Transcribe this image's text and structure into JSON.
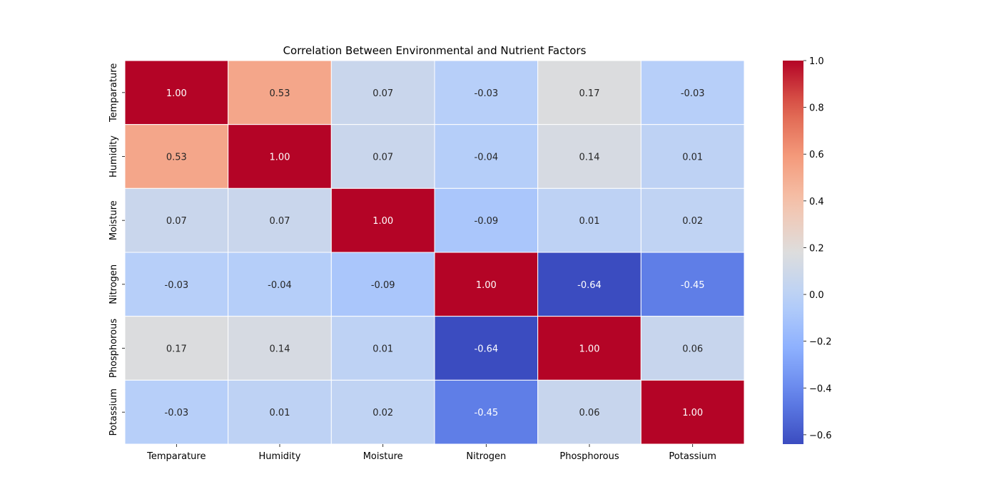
{
  "chart_data": {
    "type": "heatmap",
    "title": "Correlation Between Environmental and Nutrient Factors",
    "xlabel": "",
    "ylabel": "",
    "x_categories": [
      "Temparature",
      "Humidity",
      "Moisture",
      "Nitrogen",
      "Phosphorous",
      "Potassium"
    ],
    "y_categories": [
      "Temparature",
      "Humidity",
      "Moisture",
      "Nitrogen",
      "Phosphorous",
      "Potassium"
    ],
    "values": [
      [
        1.0,
        0.53,
        0.07,
        -0.03,
        0.17,
        -0.03
      ],
      [
        0.53,
        1.0,
        0.07,
        -0.04,
        0.14,
        0.01
      ],
      [
        0.07,
        0.07,
        1.0,
        -0.09,
        0.01,
        0.02
      ],
      [
        -0.03,
        -0.04,
        -0.09,
        1.0,
        -0.64,
        -0.45
      ],
      [
        0.17,
        0.14,
        0.01,
        -0.64,
        1.0,
        0.06
      ],
      [
        -0.03,
        0.01,
        0.02,
        -0.45,
        0.06,
        1.0
      ]
    ],
    "value_format": "0.00",
    "colormap": "coolwarm",
    "colorbar": {
      "range": [
        -0.64,
        1.0
      ],
      "ticks": [
        1.0,
        0.8,
        0.6,
        0.4,
        0.2,
        0.0,
        -0.2,
        -0.4,
        -0.6
      ],
      "tick_labels": [
        "1.0",
        "0.8",
        "0.6",
        "0.4",
        "0.2",
        "0.0",
        "−0.2",
        "−0.4",
        "−0.6"
      ],
      "placement": "right"
    },
    "grid": false
  }
}
